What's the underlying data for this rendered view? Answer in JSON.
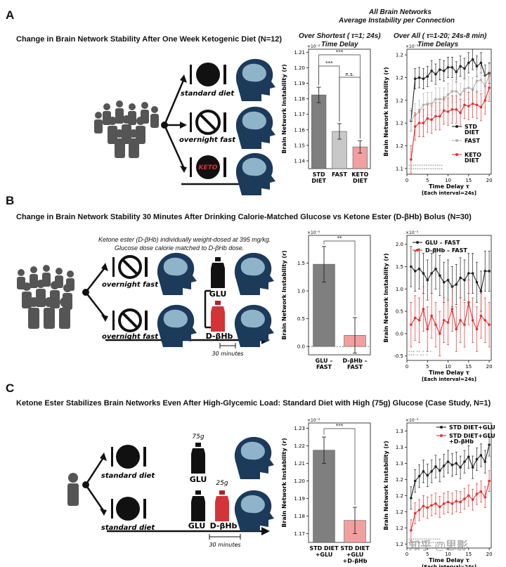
{
  "colors": {
    "std": "#7f7f7f",
    "fast": "#c8c8c8",
    "keto": "#f2a09f",
    "red": "#e03030",
    "dark": "#222222",
    "head": "#1c3a5a"
  },
  "header": {
    "line1": "All Brain Networks",
    "line2": "Average Instability per Connection"
  },
  "panelA": {
    "letter": "A",
    "title": "Change in Brain Network Stability After One Week Ketogenic Diet (N=12)",
    "diets": [
      "standard diet",
      "overnight fast"
    ],
    "keto_label": "KETO",
    "barTitle1": "Over Shortest ( τ=1; 24s)",
    "barTitle2": "Time Delay",
    "lineTitle1": "Over All ( τ=1-20; 24s-8 min)",
    "lineTitle2": "Time Delays"
  },
  "panelB": {
    "letter": "B",
    "title": "Change in Brain Network Stability 30 Minutes After Drinking Calorie-Matched Glucose vs Ketone Ester (D-βHb) Bolus (N=30)",
    "note1": "Ketone ester (D-βHb) individually weight-dosed at 395 mg/kg.",
    "note2": "Glucose dose calorie matched to D-βHb dose.",
    "diets": [
      "overnight fast",
      "overnight fast"
    ],
    "glu": "GLU",
    "dbhb": "D-βHb",
    "minutes": "30 minutes"
  },
  "panelC": {
    "letter": "C",
    "title": "Ketone Ester Stabilizes Brain Networks Even After High-Glycemic Load:  Standard Diet with High (75g) Glucose (Case Study, N=1)",
    "diets": [
      "standard diet",
      "standard diet"
    ],
    "dose1": "75g",
    "dose2": "25g",
    "glu": "GLU",
    "dbhb": "D-βHb",
    "minutes": "30 minutes"
  },
  "watermark": "知乎 @思影",
  "chart_data": [
    {
      "id": "A-bar",
      "type": "bar",
      "ylabel": "Brain Network Instability (r)",
      "exponent": "×10⁻³",
      "ylim": [
        1.135,
        1.212
      ],
      "yticks": [
        1.14,
        1.15,
        1.16,
        1.17,
        1.18,
        1.19,
        1.2,
        1.21
      ],
      "categories": [
        "STD\nDIET",
        "FAST",
        "KETO\nDIET"
      ],
      "values": [
        1.1825,
        1.159,
        1.149
      ],
      "errors": [
        0.005,
        0.005,
        0.004
      ],
      "colors": [
        "#7f7f7f",
        "#c8c8c8",
        "#f2a09f"
      ],
      "brackets": [
        {
          "from": 0,
          "to": 2,
          "label": "***"
        },
        {
          "from": 0,
          "to": 1,
          "label": "***"
        },
        {
          "from": 1,
          "to": 2,
          "label": "n.s."
        }
      ]
    },
    {
      "id": "A-line",
      "type": "line",
      "xlabel": "Time Delay τ",
      "xlabel2": "[Each interval=24s]",
      "ylabel": "Brain Network Instability (r)",
      "exponent": "×10⁻³",
      "xlim": [
        0,
        20.5
      ],
      "ylim": [
        1.135,
        1.245
      ],
      "yticks": [
        1.14,
        1.16,
        1.18,
        1.2,
        1.22,
        1.24
      ],
      "xticks": [
        0,
        5,
        10,
        15,
        20
      ],
      "legend": "right",
      "x": [
        1,
        2,
        3,
        4,
        5,
        6,
        7,
        8,
        9,
        10,
        11,
        12,
        13,
        14,
        15,
        16,
        17,
        18,
        19,
        20
      ],
      "series": [
        {
          "name": "STD DIET",
          "color": "#222222",
          "err": 0.009,
          "values": [
            1.182,
            1.219,
            1.22,
            1.219,
            1.221,
            1.226,
            1.223,
            1.227,
            1.226,
            1.229,
            1.229,
            1.225,
            1.23,
            1.228,
            1.233,
            1.236,
            1.23,
            1.233,
            1.222,
            1.224
          ]
        },
        {
          "name": "FAST",
          "color": "#b0b0b0",
          "err": 0.01,
          "values": [
            1.183,
            1.187,
            1.19,
            1.196,
            1.197,
            1.197,
            1.201,
            1.201,
            1.201,
            1.205,
            1.208,
            1.208,
            1.205,
            1.21,
            1.211,
            1.21,
            1.217,
            1.218,
            1.213,
            1.222
          ]
        },
        {
          "name": "KETO DIET",
          "color": "#e03030",
          "err": 0.012,
          "values": [
            1.148,
            1.177,
            1.18,
            1.18,
            1.184,
            1.183,
            1.186,
            1.186,
            1.191,
            1.19,
            1.192,
            1.192,
            1.189,
            1.196,
            1.195,
            1.197,
            1.196,
            1.194,
            1.2,
            1.211
          ]
        }
      ],
      "sig_rows": [
        "****************",
        "****************"
      ]
    },
    {
      "id": "B-bar",
      "type": "bar",
      "ylabel": "Brain Network Instability (r)",
      "exponent": "×10⁻⁵",
      "ylim": [
        -0.15,
        2.0
      ],
      "yticks": [
        0.0,
        0.5,
        1.0,
        1.5
      ],
      "categories": [
        "GLU –\nFAST",
        "D-βHb –\nFAST"
      ],
      "values": [
        1.48,
        0.2
      ],
      "errors": [
        0.32,
        0.32
      ],
      "colors": [
        "#7f7f7f",
        "#f2a09f"
      ],
      "brackets": [
        {
          "from": 0,
          "to": 1,
          "label": "**"
        }
      ]
    },
    {
      "id": "B-line",
      "type": "line",
      "xlabel": "Time Delay τ",
      "xlabel2": "[Each interval=24s]",
      "ylabel": "Brain Network Instability (r)",
      "exponent": "×10⁻⁵",
      "xlim": [
        0,
        20.5
      ],
      "ylim": [
        -0.6,
        2.2
      ],
      "yticks": [
        -0.5,
        0.0,
        0.5,
        1.0,
        1.5,
        2.0
      ],
      "xticks": [
        0,
        5,
        10,
        15,
        20
      ],
      "legend": "top",
      "x": [
        1,
        2,
        3,
        4,
        5,
        6,
        7,
        8,
        9,
        10,
        11,
        12,
        13,
        14,
        15,
        16,
        17,
        18,
        19,
        20
      ],
      "series": [
        {
          "name": "GLU – FAST",
          "color": "#222222",
          "err": 0.45,
          "values": [
            1.5,
            1.4,
            1.45,
            1.35,
            1.2,
            1.35,
            1.45,
            1.3,
            1.15,
            1.2,
            1.05,
            1.1,
            1.25,
            1.2,
            1.35,
            1.35,
            1.15,
            0.95,
            1.4,
            1.4
          ]
        },
        {
          "name": "D-βHb – FAST",
          "color": "#e03030",
          "err": 0.5,
          "values": [
            0.2,
            0.35,
            0.3,
            0.55,
            0.1,
            0.4,
            0.2,
            0.0,
            0.3,
            0.25,
            0.55,
            0.1,
            0.3,
            0.2,
            0.7,
            0.3,
            0.1,
            0.4,
            0.3,
            0.2
          ]
        }
      ],
      "sig_rows": [
        "*** **  *  *  *",
        "*** *  **   *"
      ]
    },
    {
      "id": "C-bar",
      "type": "bar",
      "ylabel": "Brain Network Instability (r)",
      "exponent": "×10⁻³",
      "ylim": [
        1.165,
        1.233
      ],
      "yticks": [
        1.17,
        1.18,
        1.19,
        1.2,
        1.21,
        1.22,
        1.23
      ],
      "categories": [
        "STD DIET\n+GLU",
        "STD DIET\n+GLU\n+D-βHb"
      ],
      "values": [
        1.2175,
        1.1775
      ],
      "errors": [
        0.0075,
        0.0075
      ],
      "colors": [
        "#7f7f7f",
        "#f2a09f"
      ],
      "brackets": [
        {
          "from": 0,
          "to": 1,
          "label": "***"
        }
      ]
    },
    {
      "id": "C-line",
      "type": "line",
      "xlabel": "Time Delay τ",
      "xlabel2": "[Each interval=24s]",
      "ylabel": "Brain Network Instability (r)",
      "exponent": "×10⁻³",
      "xlim": [
        0,
        20.5
      ],
      "ylim": [
        1.155,
        1.31
      ],
      "yticks": [
        1.16,
        1.18,
        1.2,
        1.22,
        1.24,
        1.26,
        1.28,
        1.3
      ],
      "xticks": [
        0,
        5,
        10,
        15,
        20
      ],
      "legend": "top-right",
      "x": [
        1,
        2,
        3,
        4,
        5,
        6,
        7,
        8,
        9,
        10,
        11,
        12,
        13,
        14,
        15,
        16,
        17,
        18,
        19,
        20
      ],
      "series": [
        {
          "name": "STD DIET+GLU",
          "color": "#222222",
          "err": 0.014,
          "values": [
            1.217,
            1.238,
            1.244,
            1.25,
            1.245,
            1.25,
            1.256,
            1.251,
            1.257,
            1.262,
            1.258,
            1.26,
            1.255,
            1.262,
            1.268,
            1.255,
            1.265,
            1.27,
            1.262,
            1.283
          ]
        },
        {
          "name": "STD DIET+GLU +D-βHb",
          "color": "#e03030",
          "err": 0.013,
          "values": [
            1.177,
            1.198,
            1.202,
            1.207,
            1.205,
            1.208,
            1.21,
            1.206,
            1.21,
            1.212,
            1.21,
            1.213,
            1.212,
            1.216,
            1.22,
            1.215,
            1.222,
            1.225,
            1.218,
            1.238
          ]
        }
      ],
      "sig_rows": [
        "***************",
        "****************"
      ]
    }
  ]
}
